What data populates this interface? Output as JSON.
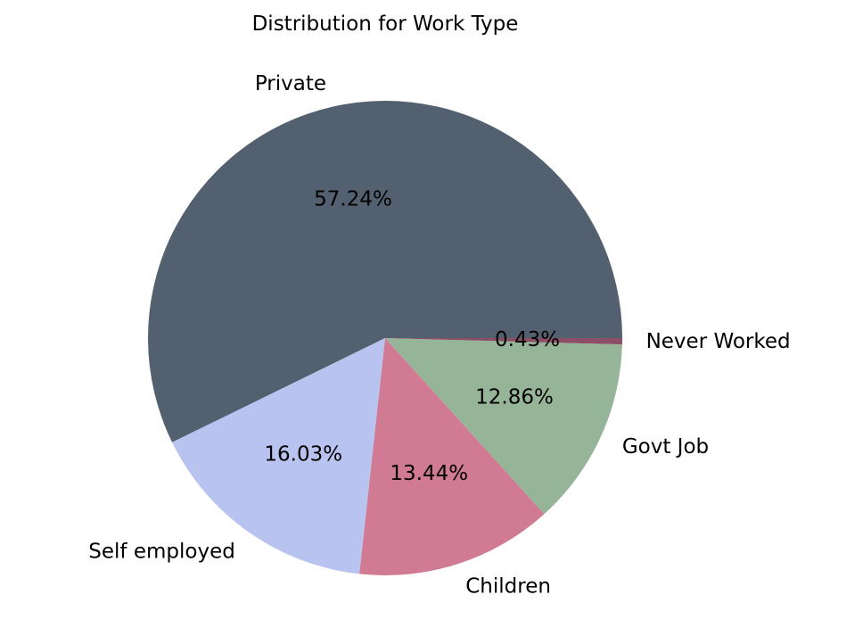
{
  "chart_data": {
    "type": "pie",
    "title": "Distribution for Work Type",
    "categories": [
      "Private",
      "Self employed",
      "Children",
      "Govt Job",
      "Never Worked"
    ],
    "values": [
      57.24,
      16.03,
      13.44,
      12.86,
      0.43
    ],
    "value_labels": [
      "57.24%",
      "16.03%",
      "13.44%",
      "12.86%",
      "0.43%"
    ],
    "colors": [
      "#52606f",
      "#b9c3f0",
      "#d07a93",
      "#96b598",
      "#8b4e66"
    ],
    "start_angle": 0,
    "direction": "counterclockwise",
    "legend": "none"
  }
}
